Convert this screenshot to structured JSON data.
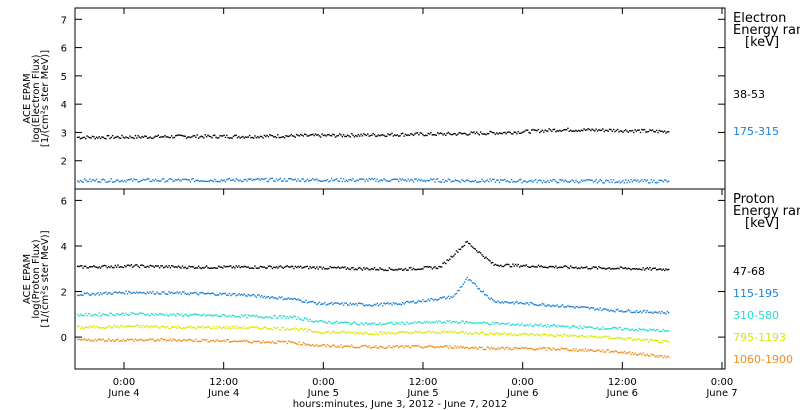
{
  "chart_data": {
    "type": "scatter",
    "xlabel": "hours:minutes, June  3, 2012 - June  7, 2012",
    "x_ticks": [
      {
        "time": "0:00",
        "day": "June 4"
      },
      {
        "time": "12:00",
        "day": "June 4"
      },
      {
        "time": "0:00",
        "day": "June 5"
      },
      {
        "time": "12:00",
        "day": "June 5"
      },
      {
        "time": "0:00",
        "day": "June 6"
      },
      {
        "time": "12:00",
        "day": "June 6"
      },
      {
        "time": "0:00",
        "day": "June 7"
      }
    ],
    "panels": [
      {
        "name": "electron",
        "ylabel_lines": [
          "ACE EPAM",
          "log(Electron Flux)",
          "[1/(cm²s ster MeV)]"
        ],
        "ylim": [
          1,
          7.4
        ],
        "yticks": [
          "2",
          "3",
          "4",
          "5",
          "6",
          "7"
        ],
        "legend_title_lines": [
          "Electron",
          "Energy range",
          "[keV]"
        ],
        "series": [
          {
            "name": "38-53",
            "color": "#000000",
            "points": [
              [
                0,
                2.85
              ],
              [
                8,
                2.86
              ],
              [
                16,
                2.88
              ],
              [
                24,
                2.88
              ],
              [
                32,
                2.9
              ],
              [
                40,
                2.92
              ],
              [
                48,
                2.95
              ],
              [
                56,
                2.97
              ],
              [
                64,
                3.02
              ],
              [
                72,
                3.12
              ],
              [
                80,
                3.1
              ],
              [
                88,
                3.05
              ]
            ]
          },
          {
            "name": "175-315",
            "color": "#1a7fd4",
            "points": [
              [
                0,
                1.32
              ],
              [
                8,
                1.33
              ],
              [
                16,
                1.33
              ],
              [
                24,
                1.34
              ],
              [
                32,
                1.35
              ],
              [
                40,
                1.34
              ],
              [
                48,
                1.34
              ],
              [
                56,
                1.32
              ],
              [
                64,
                1.31
              ],
              [
                72,
                1.3
              ],
              [
                80,
                1.3
              ],
              [
                88,
                1.3
              ]
            ]
          }
        ]
      },
      {
        "name": "proton",
        "ylabel_lines": [
          "ACE EPAM",
          "log(Proton Flux)",
          "[1/(cm²s ster MeV)]"
        ],
        "ylim": [
          -1.4,
          6.5
        ],
        "yticks": [
          "0",
          "2",
          "4",
          "6"
        ],
        "legend_title_lines": [
          "Proton",
          "Energy range",
          "[keV]"
        ],
        "series": [
          {
            "name": "47-68",
            "color": "#000000",
            "points": [
              [
                0,
                3.1
              ],
              [
                8,
                3.15
              ],
              [
                16,
                3.1
              ],
              [
                24,
                3.1
              ],
              [
                32,
                3.1
              ],
              [
                40,
                3.05
              ],
              [
                48,
                3.0
              ],
              [
                54,
                3.1
              ],
              [
                58,
                4.2
              ],
              [
                62,
                3.2
              ],
              [
                72,
                3.1
              ],
              [
                80,
                3.05
              ],
              [
                88,
                3.0
              ]
            ]
          },
          {
            "name": "115-195",
            "color": "#1a7fd4",
            "points": [
              [
                0,
                1.9
              ],
              [
                8,
                2.0
              ],
              [
                16,
                1.95
              ],
              [
                24,
                1.9
              ],
              [
                32,
                1.7
              ],
              [
                36,
                1.5
              ],
              [
                44,
                1.45
              ],
              [
                48,
                1.5
              ],
              [
                56,
                1.8
              ],
              [
                58,
                2.6
              ],
              [
                62,
                1.6
              ],
              [
                72,
                1.4
              ],
              [
                80,
                1.2
              ],
              [
                88,
                1.1
              ]
            ]
          },
          {
            "name": "310-580",
            "color": "#22dcd0",
            "points": [
              [
                0,
                1.0
              ],
              [
                8,
                1.05
              ],
              [
                16,
                1.0
              ],
              [
                24,
                0.95
              ],
              [
                32,
                0.9
              ],
              [
                36,
                0.7
              ],
              [
                44,
                0.6
              ],
              [
                56,
                0.7
              ],
              [
                60,
                0.65
              ],
              [
                72,
                0.5
              ],
              [
                80,
                0.4
              ],
              [
                88,
                0.3
              ]
            ]
          },
          {
            "name": "795-1193",
            "color": "#d8e800",
            "points": [
              [
                0,
                0.45
              ],
              [
                8,
                0.5
              ],
              [
                16,
                0.45
              ],
              [
                24,
                0.45
              ],
              [
                32,
                0.4
              ],
              [
                36,
                0.25
              ],
              [
                44,
                0.2
              ],
              [
                56,
                0.25
              ],
              [
                60,
                0.2
              ],
              [
                72,
                0.1
              ],
              [
                80,
                0.0
              ],
              [
                88,
                -0.2
              ]
            ]
          },
          {
            "name": "1060-1900",
            "color": "#f08c1a",
            "points": [
              [
                0,
                -0.1
              ],
              [
                8,
                -0.1
              ],
              [
                16,
                -0.1
              ],
              [
                24,
                -0.15
              ],
              [
                32,
                -0.2
              ],
              [
                36,
                -0.35
              ],
              [
                44,
                -0.4
              ],
              [
                56,
                -0.4
              ],
              [
                60,
                -0.45
              ],
              [
                72,
                -0.5
              ],
              [
                80,
                -0.6
              ],
              [
                88,
                -0.85
              ]
            ]
          }
        ]
      }
    ]
  }
}
